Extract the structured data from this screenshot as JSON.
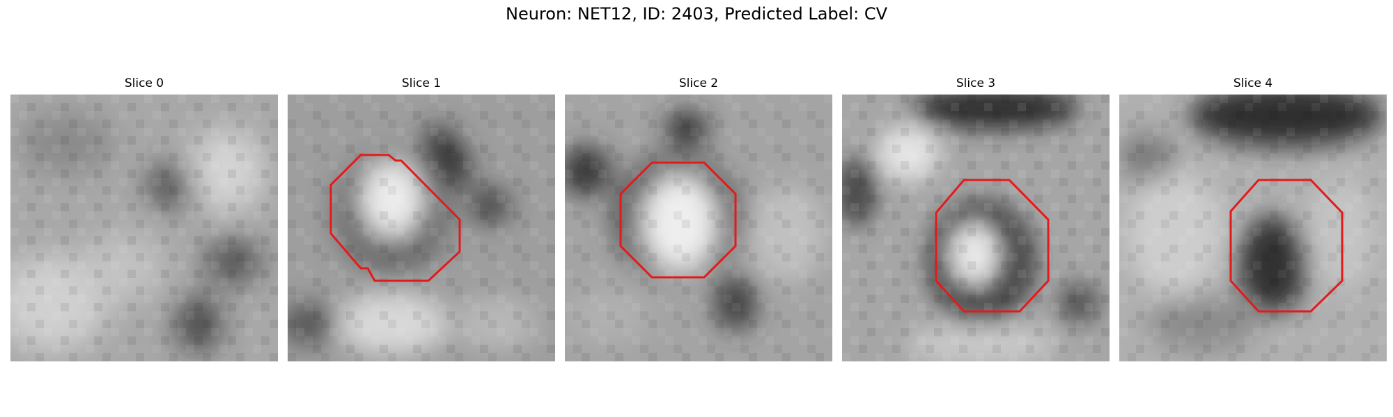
{
  "figure": {
    "title": "Neuron: NET12, ID: 2403, Predicted Label: CV",
    "outline_color": "#e31a1c"
  },
  "panels": [
    {
      "title": "Slice 0",
      "has_outline": false
    },
    {
      "title": "Slice 1",
      "has_outline": true
    },
    {
      "title": "Slice 2",
      "has_outline": true
    },
    {
      "title": "Slice 3",
      "has_outline": true
    },
    {
      "title": "Slice 4",
      "has_outline": true
    }
  ]
}
